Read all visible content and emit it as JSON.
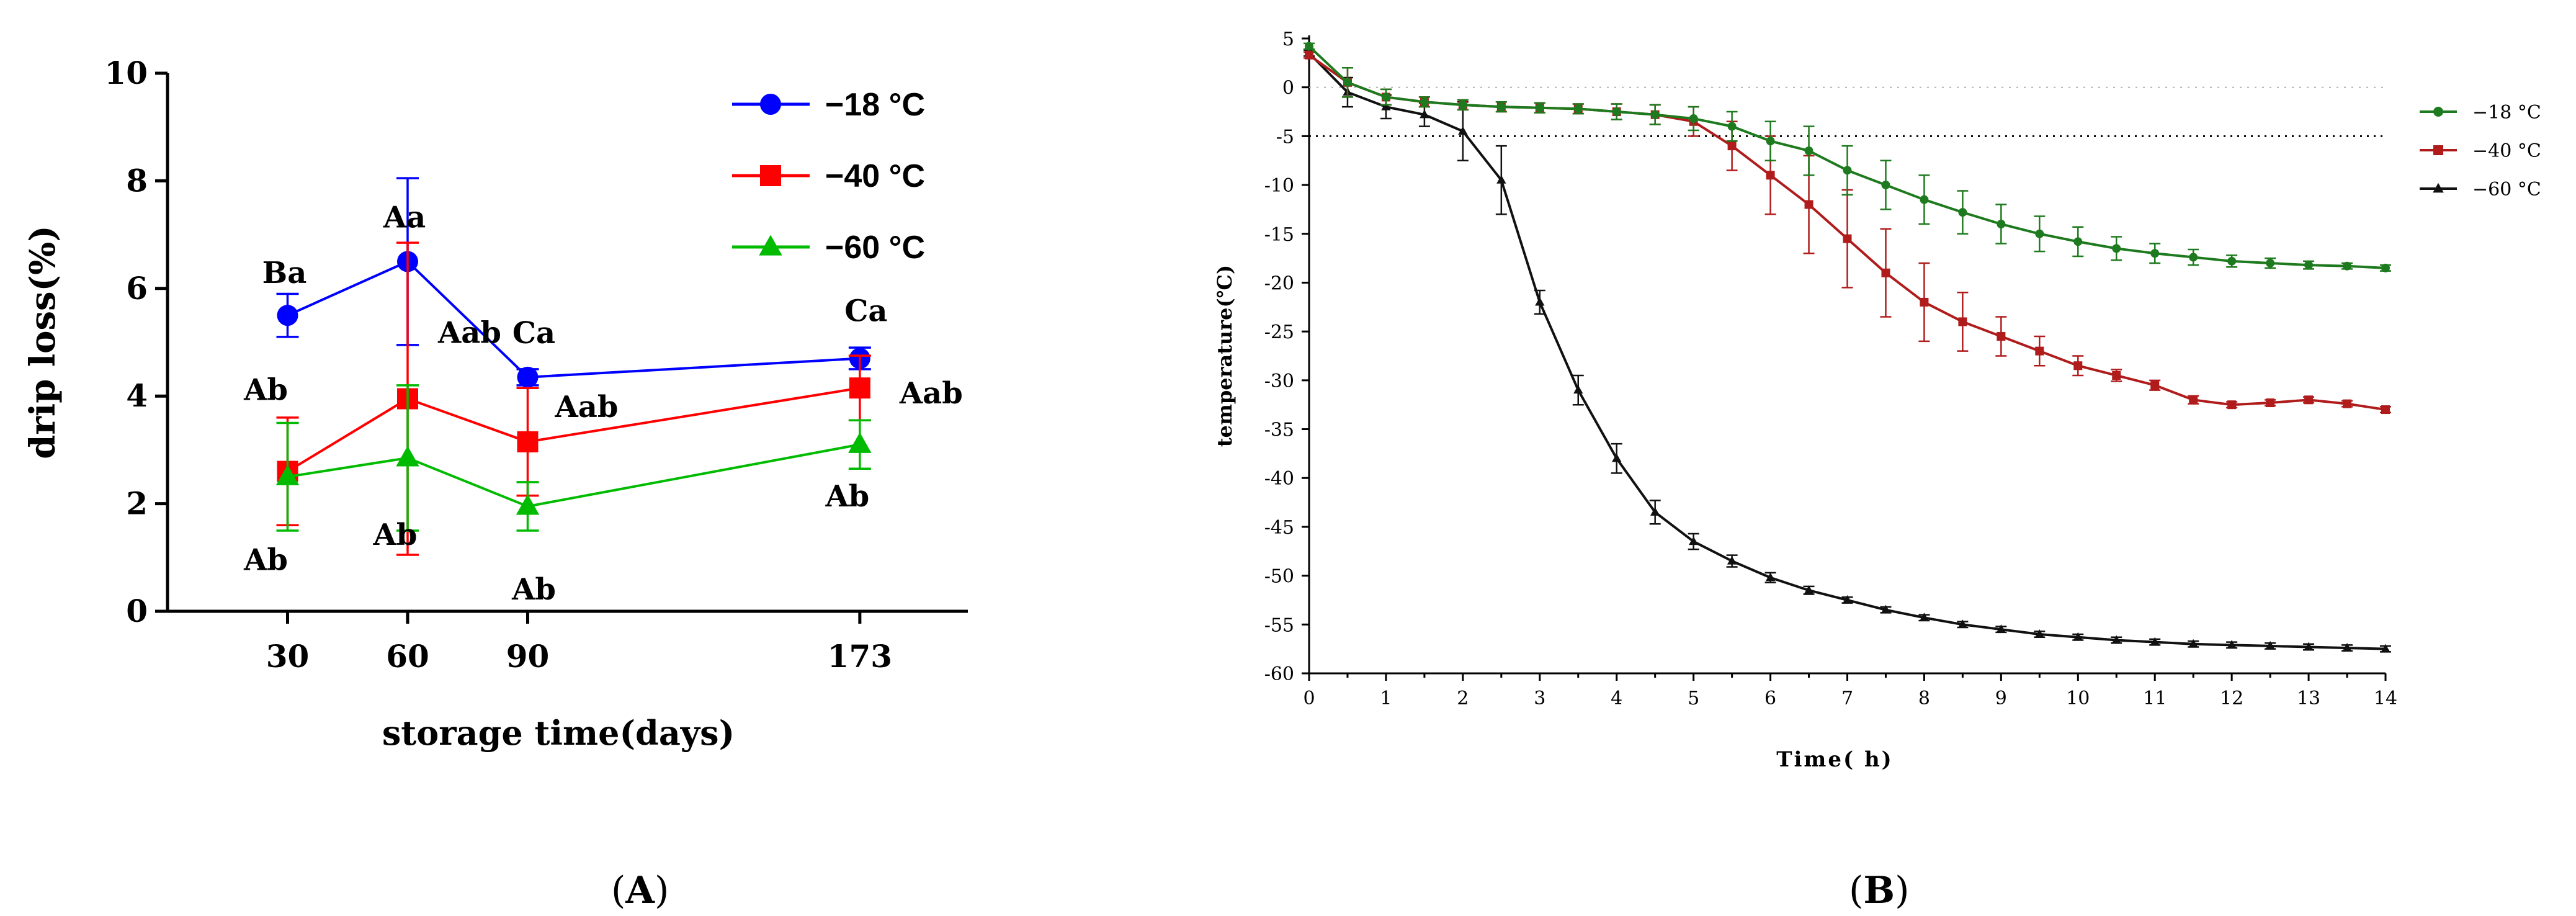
{
  "panels": {
    "A": {
      "label_open": "(",
      "label_letter": "A",
      "label_close": ")"
    },
    "B": {
      "label_open": "(",
      "label_letter": "B",
      "label_close": ")"
    }
  },
  "chart_data": [
    {
      "id": "A",
      "type": "line",
      "title": "",
      "xlabel": "storage time(days)",
      "ylabel": "drip loss(%)",
      "x": [
        30,
        60,
        90,
        173
      ],
      "xticks": [
        "30",
        "60",
        "90",
        "173"
      ],
      "yticks": [
        "0",
        "2",
        "4",
        "6",
        "8",
        "10"
      ],
      "xlim": [
        0,
        200
      ],
      "ylim": [
        0,
        10
      ],
      "legend_position": "top-right",
      "series": [
        {
          "name": "−18 °C",
          "color": "#0000ff",
          "marker": "circle",
          "values": [
            5.5,
            6.5,
            4.35,
            4.7
          ],
          "errors": [
            0.4,
            1.55,
            0.15,
            0.2
          ],
          "labels": [
            "Ba",
            "Aa",
            "Ca",
            "Ca"
          ]
        },
        {
          "name": "−40 °C",
          "color": "#ff0000",
          "marker": "square",
          "values": [
            2.6,
            3.95,
            3.15,
            4.15
          ],
          "errors": [
            1.0,
            2.9,
            1.0,
            0.6
          ],
          "labels": [
            "Ab",
            "Aab",
            "Aab",
            "Aab"
          ]
        },
        {
          "name": "−60 °C",
          "color": "#00bb00",
          "marker": "triangle",
          "values": [
            2.5,
            2.85,
            1.95,
            3.1
          ],
          "errors": [
            1.0,
            1.35,
            0.45,
            0.45
          ],
          "labels": [
            "Ab",
            "Ab",
            "Ab",
            "Ab"
          ]
        }
      ]
    },
    {
      "id": "B",
      "type": "line",
      "title": "",
      "xlabel": "Time( h)",
      "ylabel": "temperature(℃)",
      "x": [
        0,
        0.5,
        1,
        1.5,
        2,
        2.5,
        3,
        3.5,
        4,
        4.5,
        5,
        5.5,
        6,
        6.5,
        7,
        7.5,
        8,
        8.5,
        9,
        9.5,
        10,
        10.5,
        11,
        11.5,
        12,
        12.5,
        13,
        13.5,
        14
      ],
      "xticks": [
        "0",
        "1",
        "2",
        "3",
        "4",
        "5",
        "6",
        "7",
        "8",
        "9",
        "10",
        "11",
        "12",
        "13",
        "14"
      ],
      "yticks": [
        "5",
        "0",
        "-5",
        "-10",
        "-15",
        "-20",
        "-25",
        "-30",
        "-35",
        "-40",
        "-45",
        "-50",
        "-55",
        "-60"
      ],
      "xlim": [
        0,
        14
      ],
      "ylim": [
        -60,
        5
      ],
      "reference_lines": [
        0,
        -5
      ],
      "legend_position": "top-right",
      "series": [
        {
          "name": "−18 °C",
          "color": "#1e7a1e",
          "marker": "circle",
          "values": [
            4.2,
            0.5,
            -1,
            -1.5,
            -1.8,
            -2,
            -2.1,
            -2.2,
            -2.5,
            -2.8,
            -3.2,
            -4,
            -5.5,
            -6.5,
            -8.5,
            -10,
            -11.5,
            -12.8,
            -14,
            -15,
            -15.8,
            -16.5,
            -17,
            -17.4,
            -17.8,
            -18,
            -18.2,
            -18.3,
            -18.5
          ],
          "errors": [
            0.3,
            1.5,
            0.8,
            0.5,
            0.5,
            0.5,
            0.5,
            0.5,
            0.8,
            1,
            1.2,
            1.5,
            2,
            2.5,
            2.5,
            2.5,
            2.5,
            2.2,
            2,
            1.8,
            1.5,
            1.2,
            1,
            0.8,
            0.6,
            0.5,
            0.4,
            0.3,
            0.3
          ]
        },
        {
          "name": "−40 °C",
          "color": "#b01c1c",
          "marker": "square",
          "values": [
            3.3,
            0.5,
            -1,
            -1.5,
            -1.8,
            -2,
            -2.1,
            -2.2,
            -2.5,
            -2.8,
            -3.5,
            -6,
            -9,
            -12,
            -15.5,
            -19,
            -22,
            -24,
            -25.5,
            -27,
            -28.5,
            -29.5,
            -30.5,
            -32,
            -32.5,
            -32.3,
            -32,
            -32.4,
            -33
          ],
          "errors": [
            0.3,
            1.5,
            0.8,
            0.5,
            0.5,
            0.5,
            0.5,
            0.5,
            0.8,
            1,
            1.5,
            2.5,
            4,
            5,
            5,
            4.5,
            4,
            3,
            2,
            1.5,
            1,
            0.6,
            0.5,
            0.4,
            0.3,
            0.3,
            0.3,
            0.3,
            0.3
          ]
        },
        {
          "name": "−60 °C",
          "color": "#111111",
          "marker": "triangle",
          "values": [
            3.5,
            -0.5,
            -2,
            -2.8,
            -4.5,
            -9.5,
            -22,
            -31,
            -38,
            -43.5,
            -46.5,
            -48.5,
            -50.2,
            -51.5,
            -52.5,
            -53.5,
            -54.3,
            -55,
            -55.5,
            -56,
            -56.3,
            -56.6,
            -56.8,
            -57,
            -57.1,
            -57.2,
            -57.3,
            -57.4,
            -57.5
          ],
          "errors": [
            0.3,
            1.5,
            1.2,
            1.2,
            3,
            3.5,
            1.2,
            1.5,
            1.5,
            1.2,
            0.8,
            0.6,
            0.5,
            0.4,
            0.3,
            0.3,
            0.3,
            0.3,
            0.3,
            0.3,
            0.3,
            0.3,
            0.3,
            0.3,
            0.3,
            0.3,
            0.3,
            0.3,
            0.3
          ]
        }
      ]
    }
  ]
}
